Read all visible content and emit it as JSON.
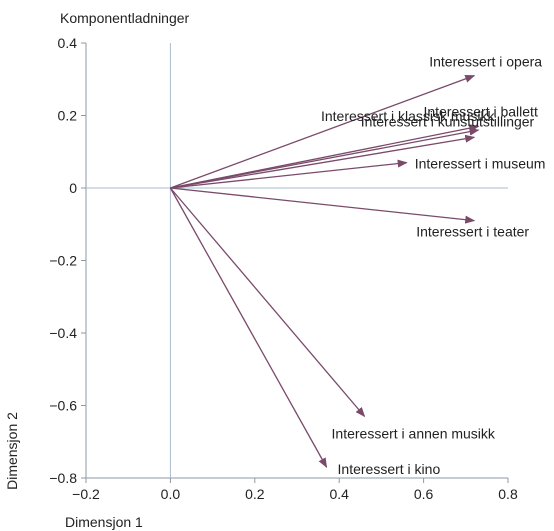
{
  "chart_data": {
    "type": "biplot-vectors",
    "title": "Komponentladninger",
    "xlabel": "Dimensjon 1",
    "ylabel": "Dimensjon 2",
    "xlim": [
      -0.2,
      0.8
    ],
    "ylim": [
      -0.8,
      0.4
    ],
    "x_ticks": [
      -0.2,
      0.0,
      0.2,
      0.4,
      0.6,
      0.8
    ],
    "y_ticks": [
      0.4,
      0.2,
      0,
      -0.2,
      -0.4,
      -0.6,
      -0.8
    ],
    "x_tick_labels": [
      "−0.2",
      "0.0",
      "0.2",
      "0.4",
      "0.6",
      "0.8"
    ],
    "y_tick_labels": [
      "0.4",
      "0.2",
      "0",
      "−0.2",
      "−0.4",
      "−0.6",
      "−0.8"
    ],
    "grid": false,
    "reference_lines": "x=0 and y=0",
    "colors": {
      "vector": "#7a4a6a",
      "reference_line": "#a9bdd0",
      "axis": "#8e9aa6"
    },
    "vectors": [
      {
        "label": "Interessert i opera",
        "x": 0.72,
        "y": 0.31
      },
      {
        "label": "Interessert i ballett",
        "x": 0.73,
        "y": 0.17
      },
      {
        "label": "Interessert i klassisk musikk",
        "x": 0.73,
        "y": 0.16
      },
      {
        "label": "Interessert i kunstutstillinger",
        "x": 0.72,
        "y": 0.14
      },
      {
        "label": "Interessert i museum",
        "x": 0.56,
        "y": 0.07
      },
      {
        "label": "Interessert i teater",
        "x": 0.72,
        "y": -0.09
      },
      {
        "label": "Interessert i annen musikk",
        "x": 0.46,
        "y": -0.63
      },
      {
        "label": "Interessert i kino",
        "x": 0.37,
        "y": -0.77
      }
    ]
  }
}
